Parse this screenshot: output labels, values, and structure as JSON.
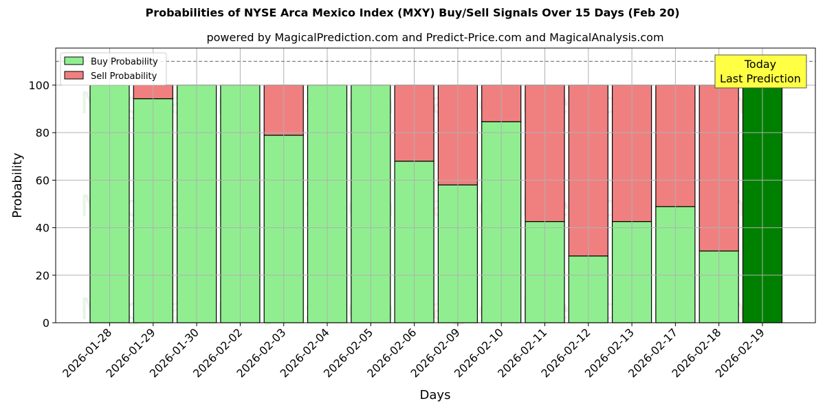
{
  "header": {
    "title": "Probabilities of NYSE Arca Mexico Index (MXY) Buy/Sell Signals Over 15 Days (Feb 20)",
    "subtitle": "powered by MagicalPrediction.com and Predict-Price.com and MagicalAnalysis.com"
  },
  "legend": {
    "buy_label": "Buy Probability",
    "sell_label": "Sell Probability"
  },
  "annotation": {
    "line1": "Today",
    "line2": "Last Prediction"
  },
  "watermarks": [
    "MagicalAnalysis.com",
    "MagicalPrediction.com"
  ],
  "colors": {
    "buy": "#90ee90",
    "sell": "#f08080",
    "today": "#008000",
    "annotation_bg": "#ffff44",
    "grid": "#b0b0b0"
  },
  "chart_data": {
    "type": "bar",
    "stacked": true,
    "title": "Probabilities of NYSE Arca Mexico Index (MXY) Buy/Sell Signals Over 15 Days (Feb 20)",
    "subtitle": "powered by MagicalPrediction.com and Predict-Price.com and MagicalAnalysis.com",
    "xlabel": "Days",
    "ylabel": "Probability",
    "ylim": [
      0,
      115.6
    ],
    "yticks": [
      0,
      20,
      40,
      60,
      80,
      100
    ],
    "grid": true,
    "legend_position": "upper left",
    "reference_line": {
      "y": 110,
      "style": "dashed"
    },
    "categories": [
      "2026-01-28",
      "2026-01-29",
      "2026-01-30",
      "2026-02-02",
      "2026-02-03",
      "2026-02-04",
      "2026-02-05",
      "2026-02-06",
      "2026-02-09",
      "2026-02-10",
      "2026-02-11",
      "2026-02-12",
      "2026-02-13",
      "2026-02-17",
      "2026-02-18",
      "2026-02-19"
    ],
    "series": [
      {
        "name": "Buy Probability",
        "values": [
          100,
          94.3,
          100,
          100,
          78.9,
          100,
          100,
          68.0,
          58.0,
          84.6,
          42.6,
          28.1,
          42.6,
          48.9,
          30.2,
          100
        ]
      },
      {
        "name": "Sell Probability",
        "values": [
          0,
          5.7,
          0,
          0,
          21.1,
          0,
          0,
          32.0,
          42.0,
          15.4,
          57.4,
          71.9,
          57.4,
          51.1,
          69.8,
          0
        ]
      }
    ],
    "highlight": {
      "category": "2026-02-19",
      "label": "Today\nLast Prediction",
      "color": "#008000"
    }
  }
}
